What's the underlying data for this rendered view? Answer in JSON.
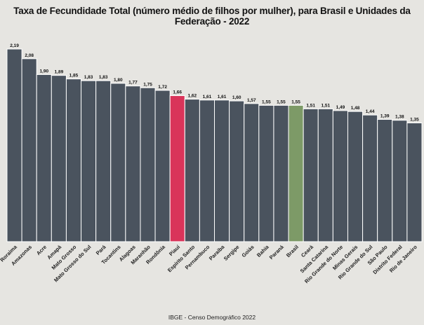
{
  "chart_data": {
    "type": "bar",
    "title": "Taxa de Fecundidade Total (número médio de filhos por mulher), para Brasil e Unidades da Federação - 2022",
    "caption": "IBGE - Censo Demográfico 2022",
    "xlabel": "",
    "ylabel": "",
    "ylim": [
      0,
      2.19
    ],
    "grid": false,
    "categories": [
      "Roraima",
      "Amazonas",
      "Acre",
      "Amapá",
      "Mato Grosso",
      "Mato Grosso do Sul",
      "Pará",
      "Tocantins",
      "Alagoas",
      "Maranhão",
      "Rondônia",
      "Piauí",
      "Espírito Santo",
      "Pernambuco",
      "Paraíba",
      "Sergipe",
      "Goiás",
      "Bahia",
      "Paraná",
      "Brasil",
      "Ceará",
      "Santa Catarina",
      "Rio Grande do Norte",
      "Minas Gerais",
      "Rio Grande do Sul",
      "São Paulo",
      "Distrito Federal",
      "Rio de Janeiro"
    ],
    "values": [
      2.19,
      2.08,
      1.9,
      1.89,
      1.85,
      1.83,
      1.83,
      1.8,
      1.77,
      1.75,
      1.72,
      1.66,
      1.62,
      1.61,
      1.61,
      1.6,
      1.57,
      1.55,
      1.55,
      1.55,
      1.51,
      1.51,
      1.49,
      1.48,
      1.44,
      1.39,
      1.38,
      1.35
    ],
    "value_labels": [
      "2,19",
      "2,08",
      "1,90",
      "1,89",
      "1,85",
      "1,83",
      "1,83",
      "1,80",
      "1,77",
      "1,75",
      "1,72",
      "1,66",
      "1,62",
      "1,61",
      "1,61",
      "1,60",
      "1,57",
      "1,55",
      "1,55",
      "1,55",
      "1,51",
      "1,51",
      "1,49",
      "1,48",
      "1,44",
      "1,39",
      "1,38",
      "1,35"
    ],
    "colors": {
      "default": "#4a535e",
      "highlight_piaui": "#d9345a",
      "highlight_brasil": "#7d9a67",
      "background": "#e6e5e1",
      "bar_border": "#ffffff"
    },
    "highlights": {
      "Piauí": "highlight_piaui",
      "Brasil": "highlight_brasil"
    }
  }
}
